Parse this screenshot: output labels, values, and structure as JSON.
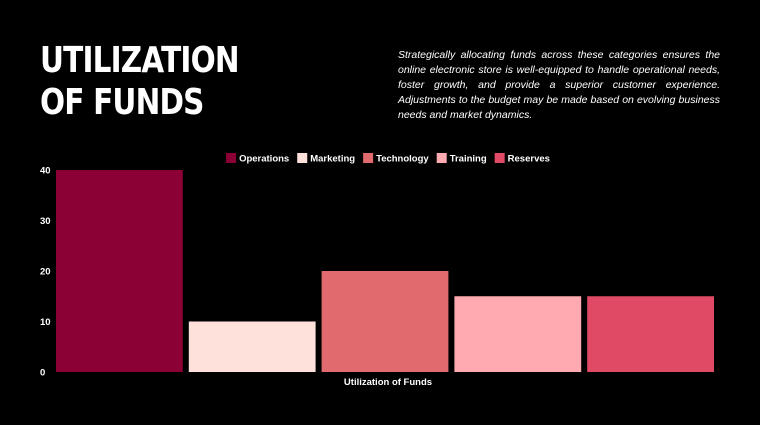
{
  "title": "UTILIZATION OF FUNDS",
  "description": "Strategically allocating funds across these categories ensures the online electronic store is well-equipped to handle operational needs, foster growth, and provide a superior customer experience. Adjustments to the budget may be made based on evolving business needs and market dynamics.",
  "chart_data": {
    "type": "bar",
    "categories": [
      "Utilization of Funds"
    ],
    "xlabel": "Utilization of Funds",
    "ylabel": "",
    "ylim": [
      0,
      40
    ],
    "yticks": [
      0,
      10,
      20,
      30,
      40
    ],
    "grid": false,
    "legend_position": "top-center",
    "series": [
      {
        "name": "Operations",
        "values": [
          40
        ],
        "color": "#8B0035"
      },
      {
        "name": "Marketing",
        "values": [
          10
        ],
        "color": "#FFE1DB"
      },
      {
        "name": "Technology",
        "values": [
          20
        ],
        "color": "#E06A6E"
      },
      {
        "name": "Training",
        "values": [
          15
        ],
        "color": "#FFAAB0"
      },
      {
        "name": "Reserves",
        "values": [
          15
        ],
        "color": "#E04A64"
      }
    ]
  }
}
